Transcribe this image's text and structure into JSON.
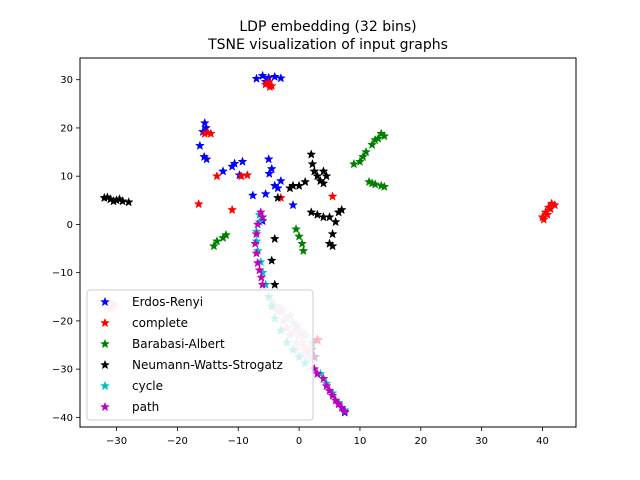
{
  "chart_data": {
    "type": "scatter",
    "title": "LDP embedding (32 bins)",
    "subtitle": "TSNE visualization of input graphs",
    "xlabel": "",
    "ylabel": "",
    "xlim": [
      -36,
      45.5
    ],
    "ylim": [
      -42,
      34.5
    ],
    "xticks": [
      -30,
      -20,
      -10,
      0,
      10,
      20,
      30,
      40
    ],
    "yticks": [
      -40,
      -30,
      -20,
      -10,
      0,
      10,
      20,
      30
    ],
    "xtick_labels": [
      "−30",
      "−20",
      "−10",
      "0",
      "10",
      "20",
      "30",
      "40"
    ],
    "ytick_labels": [
      "−40",
      "−30",
      "−20",
      "−10",
      "0",
      "10",
      "20",
      "30"
    ],
    "grid": false,
    "legend_position": "lower-left",
    "series": [
      {
        "name": "Erdos-Renyi",
        "color": "#0000ff",
        "marker": "star",
        "points": [
          [
            -7,
            30.2
          ],
          [
            -6,
            30.8
          ],
          [
            -5,
            30.4
          ],
          [
            -4,
            30.6
          ],
          [
            -3,
            30.3
          ],
          [
            -5.5,
            29.6
          ],
          [
            -15.5,
            21
          ],
          [
            -15.3,
            20
          ],
          [
            -15.8,
            19.2
          ],
          [
            -16.3,
            16.3
          ],
          [
            -15.6,
            14
          ],
          [
            -15.2,
            13.5
          ],
          [
            -12.5,
            11
          ],
          [
            -11,
            12
          ],
          [
            -10.6,
            12.6
          ],
          [
            -9.3,
            13
          ],
          [
            -9.8,
            10.2
          ],
          [
            -5,
            13.5
          ],
          [
            -4.5,
            11.5
          ],
          [
            -4.9,
            10.5
          ],
          [
            -4,
            8
          ],
          [
            -3.5,
            7.5
          ],
          [
            -3,
            9
          ],
          [
            -5.5,
            6.3
          ],
          [
            -7.6,
            6
          ],
          [
            -1,
            4
          ],
          [
            -6,
            0.7
          ],
          [
            7.5,
            -39
          ]
        ]
      },
      {
        "name": "complete",
        "color": "#ff0000",
        "marker": "star",
        "points": [
          [
            -5.5,
            29
          ],
          [
            -4.5,
            28.7
          ],
          [
            -5,
            29.5
          ],
          [
            -4.8,
            28.5
          ],
          [
            -15.5,
            18.8
          ],
          [
            -15,
            19
          ],
          [
            -14.5,
            18.8
          ],
          [
            -13.5,
            10
          ],
          [
            -9.5,
            10
          ],
          [
            -8.5,
            10.2
          ],
          [
            -16.5,
            4.2
          ],
          [
            -11,
            3
          ],
          [
            -3,
            5.5
          ],
          [
            5.5,
            5.8
          ],
          [
            40,
            1.5
          ],
          [
            40.5,
            2.5
          ],
          [
            41,
            3.5
          ],
          [
            41.5,
            4.3
          ],
          [
            42,
            4
          ],
          [
            40.2,
            1
          ],
          [
            40.8,
            2
          ],
          [
            41.3,
            3.2
          ]
        ]
      },
      {
        "name": "Barabasi-Albert",
        "color": "#008000",
        "marker": "star",
        "points": [
          [
            9,
            12.5
          ],
          [
            10,
            13
          ],
          [
            11,
            15
          ],
          [
            12,
            16.5
          ],
          [
            13,
            17.8
          ],
          [
            14,
            18.3
          ],
          [
            12.5,
            17.5
          ],
          [
            13.5,
            18.8
          ],
          [
            10.5,
            14
          ],
          [
            11.5,
            8.8
          ],
          [
            12.5,
            8.3
          ],
          [
            13.5,
            8
          ],
          [
            14,
            7.8
          ],
          [
            12,
            8.5
          ],
          [
            -14,
            -4.5
          ],
          [
            -13.5,
            -3.5
          ],
          [
            -12.5,
            -2.8
          ],
          [
            -12,
            -2.2
          ],
          [
            -0.5,
            -1
          ],
          [
            0,
            -2.5
          ],
          [
            0.5,
            -4
          ],
          [
            0.7,
            -5.5
          ]
        ]
      },
      {
        "name": "Neumann-Watts-Strogatz",
        "color": "#000000",
        "marker": "star",
        "points": [
          [
            -32,
            5.5
          ],
          [
            -31,
            5.2
          ],
          [
            -30,
            5
          ],
          [
            -29,
            4.8
          ],
          [
            -28,
            4.6
          ],
          [
            -31.5,
            5.6
          ],
          [
            -30.5,
            4.8
          ],
          [
            -29.5,
            5.2
          ],
          [
            2,
            14.5
          ],
          [
            2.2,
            12.5
          ],
          [
            2.5,
            11
          ],
          [
            3,
            10
          ],
          [
            3.5,
            9
          ],
          [
            4,
            8.5
          ],
          [
            1,
            8.8
          ],
          [
            0,
            8
          ],
          [
            -1,
            8
          ],
          [
            -1.5,
            7.5
          ],
          [
            4.5,
            10
          ],
          [
            4,
            11
          ],
          [
            2,
            2.5
          ],
          [
            3,
            2
          ],
          [
            4,
            1.5
          ],
          [
            5,
            1.5
          ],
          [
            6.5,
            2.5
          ],
          [
            7,
            3
          ],
          [
            6,
            0.5
          ],
          [
            5.5,
            -2
          ],
          [
            5,
            -4
          ],
          [
            5.5,
            -4.5
          ],
          [
            -3.5,
            5.5
          ],
          [
            -4,
            -3
          ],
          [
            -4.5,
            -7.5
          ],
          [
            -4,
            -12.5
          ]
        ]
      },
      {
        "name": "cycle",
        "color": "#00bfbf",
        "marker": "star",
        "points": [
          [
            -6.5,
            2
          ],
          [
            -6.5,
            0.5
          ],
          [
            -7,
            -1.5
          ],
          [
            -7,
            -3.5
          ],
          [
            -6.8,
            -5.5
          ],
          [
            -6.3,
            -7.8
          ],
          [
            -6,
            -10
          ],
          [
            -5.5,
            -12.5
          ],
          [
            -5,
            -15
          ],
          [
            -4.5,
            -17
          ],
          [
            -4,
            -19.5
          ],
          [
            -3,
            -22
          ],
          [
            -2,
            -24.5
          ],
          [
            -1,
            -26
          ],
          [
            0,
            -27.5
          ],
          [
            1,
            -28.8
          ],
          [
            2.5,
            -30
          ],
          [
            3.5,
            -31
          ],
          [
            4.5,
            -33
          ],
          [
            5.5,
            -35
          ],
          [
            6.5,
            -37
          ],
          [
            7.5,
            -38.5
          ]
        ]
      },
      {
        "name": "path",
        "color": "#bf00bf",
        "marker": "star",
        "points": [
          [
            -6.3,
            2.5
          ],
          [
            -6,
            1.5
          ],
          [
            -6.8,
            0
          ],
          [
            -7,
            -2
          ],
          [
            -7.2,
            -4
          ],
          [
            -7,
            -6
          ],
          [
            -6.8,
            -8
          ],
          [
            -6.5,
            -9.5
          ],
          [
            -6.2,
            -11
          ],
          [
            -6,
            -12.5
          ],
          [
            2.5,
            -30
          ],
          [
            3,
            -31
          ],
          [
            4,
            -32
          ],
          [
            4.5,
            -33.5
          ],
          [
            5,
            -34.5
          ],
          [
            5.5,
            -35.5
          ],
          [
            6,
            -36.5
          ],
          [
            6.5,
            -37.3
          ],
          [
            7,
            -38
          ],
          [
            7.5,
            -38.8
          ]
        ]
      }
    ],
    "extra_points": [
      {
        "color": "#ffb6c1",
        "points": [
          [
            -30.5,
            -16.8
          ],
          [
            -31,
            -17.5
          ],
          [
            -30.8,
            -16.5
          ],
          [
            -4,
            -17
          ],
          [
            -3.5,
            -18
          ],
          [
            -2.5,
            -20
          ],
          [
            -2,
            -21.5
          ],
          [
            -1,
            -22.5
          ],
          [
            0,
            -23
          ],
          [
            0.5,
            -24.5
          ],
          [
            1,
            -25.5
          ],
          [
            1.5,
            -26.5
          ],
          [
            3,
            -24
          ],
          [
            -0.5,
            -26
          ]
        ]
      },
      {
        "color": "#add8e6",
        "points": [
          [
            -4.5,
            -16
          ],
          [
            -3,
            -17.5
          ],
          [
            -2,
            -19.5
          ],
          [
            -1,
            -20.5
          ],
          [
            0,
            -22
          ],
          [
            1,
            -23
          ],
          [
            2,
            -24.5
          ],
          [
            0.5,
            -27
          ],
          [
            1.5,
            -28
          ],
          [
            -0.5,
            -24.5
          ]
        ]
      },
      {
        "color": "#d8bfd8",
        "points": [
          [
            -2.8,
            -18
          ],
          [
            -1.5,
            -19
          ],
          [
            -0.5,
            -21
          ],
          [
            0.3,
            -22.5
          ],
          [
            2,
            -26
          ],
          [
            2.5,
            -27.5
          ],
          [
            -1.5,
            -23
          ]
        ]
      }
    ]
  }
}
